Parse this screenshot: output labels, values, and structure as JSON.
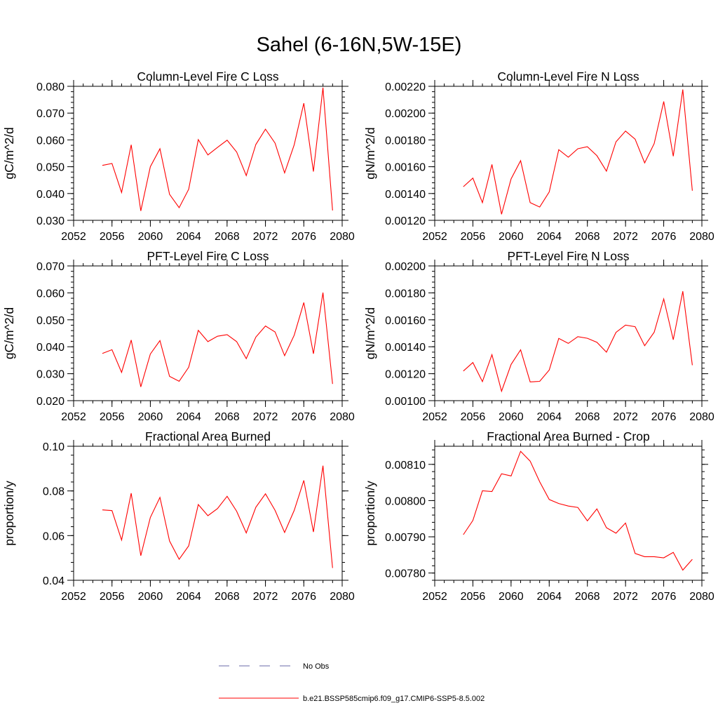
{
  "figure_title": "Sahel (6-16N,5W-15E)",
  "colors": {
    "obs": "#6a6aa8",
    "model": "#ff0000",
    "axis": "#000000"
  },
  "legend": {
    "obs_label": "No Obs",
    "model_label": "b.e21.BSSP585cmip6.f09_g17.CMIP6-SSP5-8.5.002"
  },
  "chart_data": [
    {
      "type": "line",
      "title": "Column-Level Fire C Loss",
      "ylabel": "gC/m^2/d",
      "xlim": [
        2052,
        2080
      ],
      "ylim": [
        0.03,
        0.08
      ],
      "xticks": [
        2052,
        2056,
        2060,
        2064,
        2068,
        2072,
        2076,
        2080
      ],
      "xtick_labels": [
        "2052",
        "2056",
        "2060",
        "2064",
        "2068",
        "2072",
        "2076",
        "2080"
      ],
      "yticks": [
        0.03,
        0.04,
        0.05,
        0.06,
        0.07,
        0.08
      ],
      "ytick_labels": [
        "0.030",
        "0.040",
        "0.050",
        "0.060",
        "0.070",
        "0.080"
      ],
      "x": [
        2055,
        2056,
        2057,
        2058,
        2059,
        2060,
        2061,
        2062,
        2063,
        2064,
        2065,
        2066,
        2067,
        2068,
        2069,
        2070,
        2071,
        2072,
        2073,
        2074,
        2075,
        2076,
        2077,
        2078,
        2079
      ],
      "y": [
        0.0505,
        0.0512,
        0.0404,
        0.0582,
        0.0335,
        0.05,
        0.0567,
        0.0397,
        0.0347,
        0.0416,
        0.0601,
        0.0544,
        0.0572,
        0.0599,
        0.0555,
        0.0467,
        0.0583,
        0.064,
        0.0588,
        0.0477,
        0.0582,
        0.0737,
        0.0482,
        0.0795,
        0.0337
      ]
    },
    {
      "type": "line",
      "title": "Column-Level Fire N Loss",
      "ylabel": "gN/m^2/d",
      "xlim": [
        2052,
        2080
      ],
      "ylim": [
        0.0012,
        0.0022
      ],
      "xticks": [
        2052,
        2056,
        2060,
        2064,
        2068,
        2072,
        2076,
        2080
      ],
      "xtick_labels": [
        "2052",
        "2056",
        "2060",
        "2064",
        "2068",
        "2072",
        "2076",
        "2080"
      ],
      "yticks": [
        0.0012,
        0.0014,
        0.0016,
        0.0018,
        0.002,
        0.0022
      ],
      "ytick_labels": [
        "0.00120",
        "0.00140",
        "0.00160",
        "0.00180",
        "0.00200",
        "0.00220"
      ],
      "x": [
        2055,
        2056,
        2057,
        2058,
        2059,
        2060,
        2061,
        2062,
        2063,
        2064,
        2065,
        2066,
        2067,
        2068,
        2069,
        2070,
        2071,
        2072,
        2073,
        2074,
        2075,
        2076,
        2077,
        2078,
        2079
      ],
      "y": [
        0.001451,
        0.001515,
        0.001332,
        0.001617,
        0.001245,
        0.001509,
        0.001645,
        0.001332,
        0.001299,
        0.001412,
        0.001727,
        0.001671,
        0.001734,
        0.001749,
        0.001682,
        0.001567,
        0.001786,
        0.001866,
        0.001806,
        0.001629,
        0.001773,
        0.002087,
        0.001678,
        0.002176,
        0.001421
      ]
    },
    {
      "type": "line",
      "title": "PFT-Level Fire C Loss",
      "ylabel": "gC/m^2/d",
      "xlim": [
        2052,
        2080
      ],
      "ylim": [
        0.02,
        0.07
      ],
      "xticks": [
        2052,
        2056,
        2060,
        2064,
        2068,
        2072,
        2076,
        2080
      ],
      "xtick_labels": [
        "2052",
        "2056",
        "2060",
        "2064",
        "2068",
        "2072",
        "2076",
        "2080"
      ],
      "yticks": [
        0.02,
        0.03,
        0.04,
        0.05,
        0.06,
        0.07
      ],
      "ytick_labels": [
        "0.020",
        "0.030",
        "0.040",
        "0.050",
        "0.060",
        "0.070"
      ],
      "x": [
        2055,
        2056,
        2057,
        2058,
        2059,
        2060,
        2061,
        2062,
        2063,
        2064,
        2065,
        2066,
        2067,
        2068,
        2069,
        2070,
        2071,
        2072,
        2073,
        2074,
        2075,
        2076,
        2077,
        2078,
        2079
      ],
      "y": [
        0.0375,
        0.0389,
        0.0305,
        0.0425,
        0.0251,
        0.0373,
        0.0423,
        0.029,
        0.0272,
        0.0324,
        0.0461,
        0.0419,
        0.0439,
        0.0445,
        0.0419,
        0.0356,
        0.0436,
        0.0477,
        0.0455,
        0.0367,
        0.0443,
        0.0564,
        0.0374,
        0.0601,
        0.0262
      ]
    },
    {
      "type": "line",
      "title": "PFT-Level Fire N Loss",
      "ylabel": "gN/m^2/d",
      "xlim": [
        2052,
        2080
      ],
      "ylim": [
        0.001,
        0.002
      ],
      "xticks": [
        2052,
        2056,
        2060,
        2064,
        2068,
        2072,
        2076,
        2080
      ],
      "xtick_labels": [
        "2052",
        "2056",
        "2060",
        "2064",
        "2068",
        "2072",
        "2076",
        "2080"
      ],
      "yticks": [
        0.001,
        0.0012,
        0.0014,
        0.0016,
        0.0018,
        0.002
      ],
      "ytick_labels": [
        "0.00100",
        "0.00120",
        "0.00140",
        "0.00160",
        "0.00180",
        "0.00200"
      ],
      "x": [
        2055,
        2056,
        2057,
        2058,
        2059,
        2060,
        2061,
        2062,
        2063,
        2064,
        2065,
        2066,
        2067,
        2068,
        2069,
        2070,
        2071,
        2072,
        2073,
        2074,
        2075,
        2076,
        2077,
        2078,
        2079
      ],
      "y": [
        0.00122,
        0.001283,
        0.001141,
        0.001341,
        0.00107,
        0.001269,
        0.001377,
        0.001139,
        0.001143,
        0.001227,
        0.001462,
        0.001425,
        0.001475,
        0.001463,
        0.001433,
        0.00136,
        0.001507,
        0.001561,
        0.001549,
        0.001408,
        0.001508,
        0.001755,
        0.001452,
        0.001812,
        0.001263
      ]
    },
    {
      "type": "line",
      "title": "Fractional Area Burned",
      "ylabel": "proportion/y",
      "xlim": [
        2052,
        2080
      ],
      "ylim": [
        0.04,
        0.1
      ],
      "xticks": [
        2052,
        2056,
        2060,
        2064,
        2068,
        2072,
        2076,
        2080
      ],
      "xtick_labels": [
        "2052",
        "2056",
        "2060",
        "2064",
        "2068",
        "2072",
        "2076",
        "2080"
      ],
      "yticks": [
        0.04,
        0.06,
        0.08,
        0.1
      ],
      "ytick_labels": [
        "0.04",
        "0.06",
        "0.08",
        "0.10"
      ],
      "x": [
        2055,
        2056,
        2057,
        2058,
        2059,
        2060,
        2061,
        2062,
        2063,
        2064,
        2065,
        2066,
        2067,
        2068,
        2069,
        2070,
        2071,
        2072,
        2073,
        2074,
        2075,
        2076,
        2077,
        2078,
        2079
      ],
      "y": [
        0.0715,
        0.0712,
        0.058,
        0.079,
        0.051,
        0.0681,
        0.0771,
        0.0576,
        0.0494,
        0.0554,
        0.0739,
        0.0689,
        0.0721,
        0.0776,
        0.0709,
        0.0612,
        0.0727,
        0.0787,
        0.0713,
        0.0614,
        0.0713,
        0.0847,
        0.0616,
        0.0913,
        0.0455
      ]
    },
    {
      "type": "line",
      "title": "Fractional Area Burned - Crop",
      "ylabel": "proportion/y",
      "xlim": [
        2052,
        2080
      ],
      "ylim": [
        0.00778,
        0.00815
      ],
      "xticks": [
        2052,
        2056,
        2060,
        2064,
        2068,
        2072,
        2076,
        2080
      ],
      "xtick_labels": [
        "2052",
        "2056",
        "2060",
        "2064",
        "2068",
        "2072",
        "2076",
        "2080"
      ],
      "yticks": [
        0.0078,
        0.0079,
        0.008,
        0.0081
      ],
      "ytick_labels": [
        "0.00780",
        "0.00790",
        "0.00800",
        "0.00810"
      ],
      "x": [
        2055,
        2056,
        2057,
        2058,
        2059,
        2060,
        2061,
        2062,
        2063,
        2064,
        2065,
        2066,
        2067,
        2068,
        2069,
        2070,
        2071,
        2072,
        2073,
        2074,
        2075,
        2076,
        2077,
        2078,
        2079
      ],
      "y": [
        0.007906,
        0.007945,
        0.008027,
        0.008025,
        0.008074,
        0.008068,
        0.008136,
        0.008109,
        0.008052,
        0.008003,
        0.007992,
        0.007985,
        0.007981,
        0.007944,
        0.007977,
        0.007925,
        0.00791,
        0.007938,
        0.007854,
        0.007845,
        0.007845,
        0.007842,
        0.007857,
        0.007808,
        0.007838
      ]
    }
  ]
}
